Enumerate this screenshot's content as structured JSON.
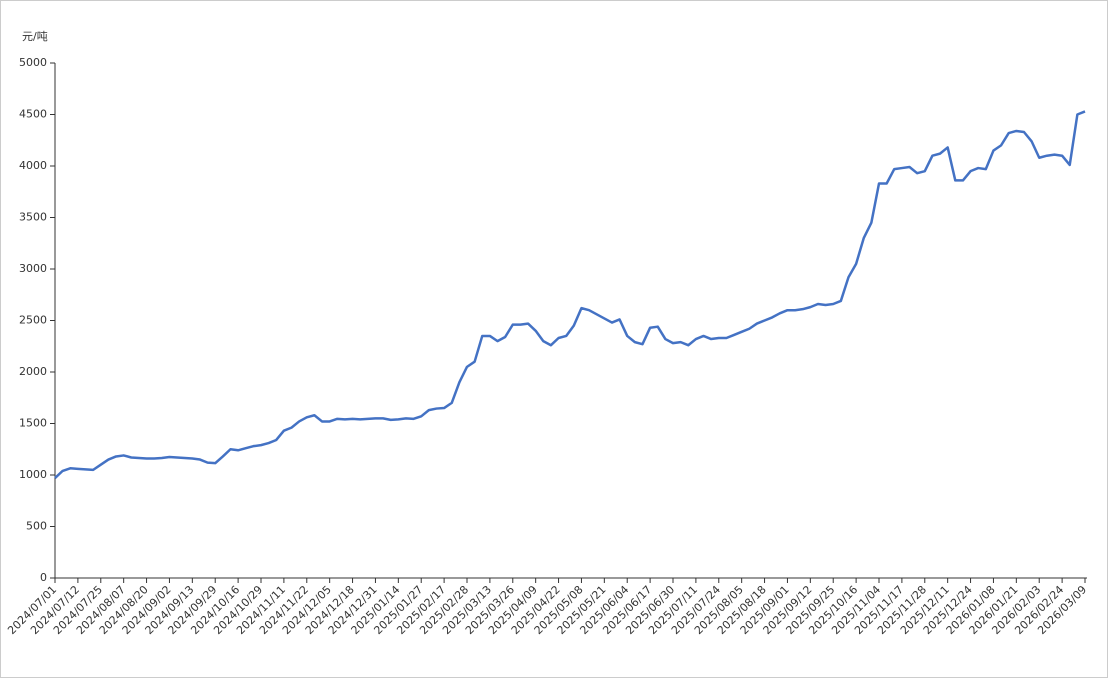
{
  "chart_data": {
    "type": "line",
    "y_axis_label": "元/吨",
    "categories": [
      "2024/07/01",
      null,
      null,
      "2024/07/12",
      null,
      null,
      "2024/07/25",
      null,
      null,
      "2024/08/07",
      null,
      null,
      "2024/08/20",
      null,
      null,
      "2024/09/02",
      null,
      null,
      "2024/09/13",
      null,
      null,
      "2024/09/29",
      null,
      null,
      "2024/10/16",
      null,
      null,
      "2024/10/29",
      null,
      null,
      "2024/11/11",
      null,
      null,
      "2024/11/22",
      null,
      null,
      "2024/12/05",
      null,
      null,
      "2024/12/18",
      null,
      null,
      "2024/12/31",
      null,
      null,
      "2025/01/14",
      null,
      null,
      "2025/01/27",
      null,
      null,
      "2025/02/17",
      null,
      null,
      "2025/02/28",
      null,
      null,
      "2025/03/13",
      null,
      null,
      "2025/03/26",
      null,
      null,
      "2025/04/09",
      null,
      null,
      "2025/04/22",
      null,
      null,
      "2025/05/08",
      null,
      null,
      "2025/05/21",
      null,
      null,
      "2025/06/04",
      null,
      null,
      "2025/06/17",
      null,
      null,
      "2025/06/30",
      null,
      null,
      "2025/07/11",
      null,
      null,
      "2025/07/24",
      null,
      null,
      "2025/08/05",
      null,
      null,
      "2025/08/18",
      null,
      null,
      "2025/09/01",
      null,
      null,
      "2025/09/12",
      null,
      null,
      "2025/09/25",
      null,
      null,
      "2025/10/16",
      null,
      null,
      "2025/11/04",
      null,
      null,
      "2025/11/17",
      null,
      null,
      "2025/11/28",
      null,
      null,
      "2025/12/11",
      null,
      null,
      "2025/12/24",
      null,
      null,
      "2026/01/08",
      null,
      null,
      "2026/01/21",
      null,
      null,
      "2026/02/03",
      null,
      null,
      "2026/02/24",
      null,
      null,
      "2026/03/09"
    ],
    "values": [
      970,
      1040,
      1065,
      1060,
      1055,
      1050,
      1100,
      1150,
      1180,
      1190,
      1170,
      1165,
      1160,
      1160,
      1165,
      1175,
      1170,
      1165,
      1160,
      1150,
      1120,
      1115,
      1180,
      1250,
      1240,
      1260,
      1280,
      1290,
      1310,
      1340,
      1430,
      1460,
      1520,
      1560,
      1580,
      1520,
      1520,
      1545,
      1540,
      1545,
      1540,
      1545,
      1550,
      1550,
      1535,
      1540,
      1550,
      1545,
      1570,
      1630,
      1645,
      1650,
      1700,
      1900,
      2050,
      2100,
      2350,
      2350,
      2300,
      2340,
      2460,
      2460,
      2470,
      2400,
      2300,
      2260,
      2330,
      2350,
      2450,
      2620,
      2600,
      2560,
      2520,
      2480,
      2510,
      2350,
      2290,
      2270,
      2430,
      2440,
      2320,
      2280,
      2290,
      2260,
      2320,
      2350,
      2320,
      2330,
      2330,
      2360,
      2390,
      2420,
      2470,
      2500,
      2530,
      2570,
      2600,
      2600,
      2610,
      2630,
      2660,
      2650,
      2660,
      2690,
      2920,
      3050,
      3300,
      3450,
      3830,
      3830,
      3970,
      3980,
      3990,
      3930,
      3950,
      4100,
      4120,
      4180,
      3860,
      3860,
      3950,
      3980,
      3970,
      4150,
      4200,
      4320,
      4340,
      4330,
      4240,
      4080,
      4100,
      4110,
      4100,
      4010,
      4500,
      4530
    ],
    "color": "#4472c4",
    "ylim": [
      0,
      5000
    ],
    "yticks": [
      0,
      500,
      1000,
      1500,
      2000,
      2500,
      3000,
      3500,
      4000,
      4500,
      5000
    ],
    "grid": false
  }
}
